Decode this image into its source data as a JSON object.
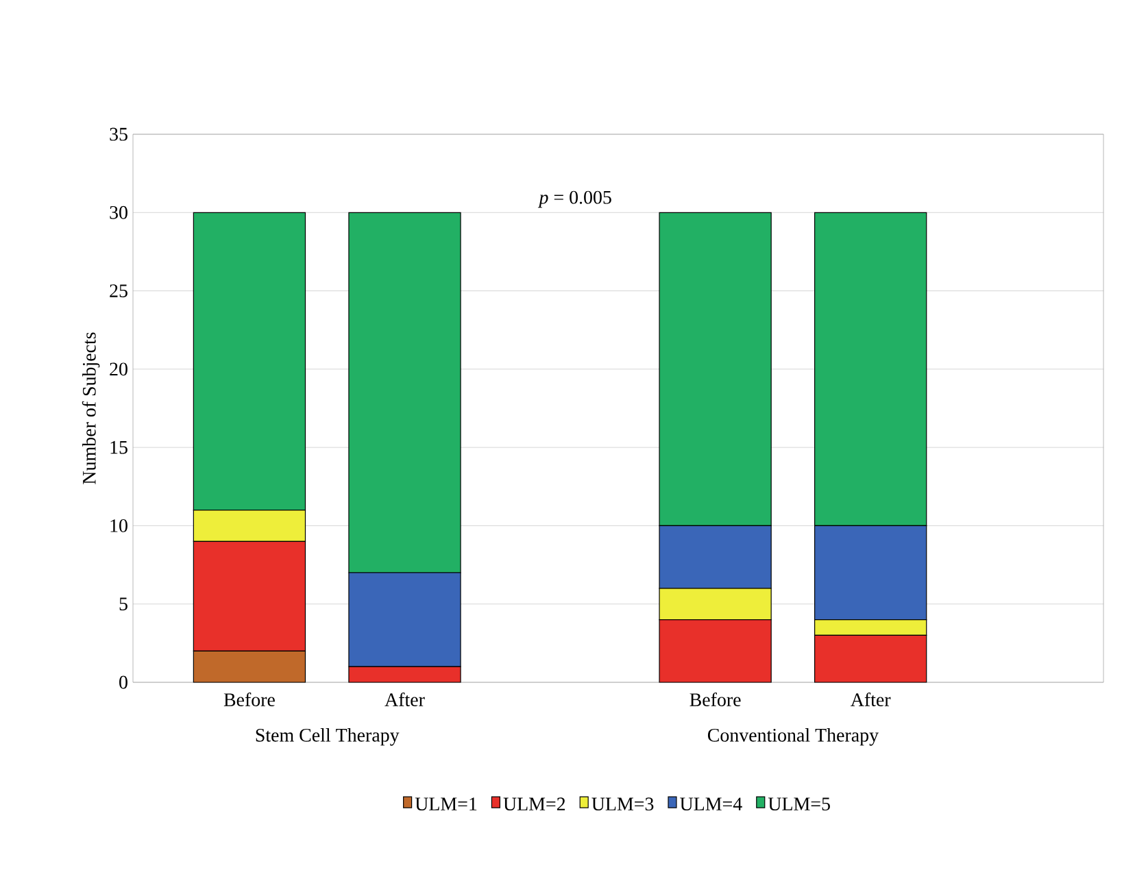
{
  "chart_data": {
    "type": "bar",
    "stacked": true,
    "ylabel": "Number of Subjects",
    "categories": [
      "Before",
      "After",
      null,
      "Before",
      "After",
      null
    ],
    "series": [
      {
        "name": "ULM=1",
        "color": "#c0692a",
        "values": [
          2,
          0,
          null,
          0,
          0,
          null
        ]
      },
      {
        "name": "ULM=2",
        "color": "#e8302a",
        "values": [
          7,
          1,
          null,
          4,
          3,
          null
        ]
      },
      {
        "name": "ULM=3",
        "color": "#eeee3a",
        "values": [
          2,
          0,
          null,
          2,
          1,
          null
        ]
      },
      {
        "name": "ULM=4",
        "color": "#3a66b8",
        "values": [
          0,
          6,
          null,
          4,
          6,
          null
        ]
      },
      {
        "name": "ULM=5",
        "color": "#22b064",
        "values": [
          19,
          23,
          null,
          20,
          20,
          null
        ]
      }
    ],
    "ylim": [
      0,
      35
    ],
    "yticks": [
      0,
      5,
      10,
      15,
      20,
      25,
      30,
      35
    ],
    "grid": "y",
    "legend": "bottom",
    "annotations": [
      "*p* = 0.005",
      "Stem Cell Therapy",
      "Conventional Therapy"
    ]
  }
}
